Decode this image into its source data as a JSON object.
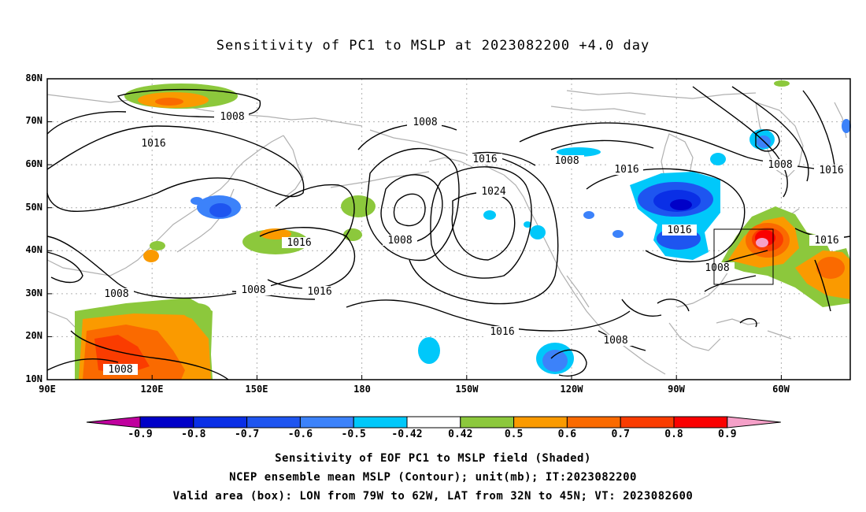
{
  "title": "Sensitivity of PC1 to MSLP at 2023082200 +4.0 day",
  "lat_labels": [
    "80N",
    "70N",
    "60N",
    "50N",
    "40N",
    "30N",
    "20N",
    "10N"
  ],
  "lon_labels": [
    "90E",
    "120E",
    "150E",
    "180",
    "150W",
    "120W",
    "90W",
    "60W"
  ],
  "contour_labels": [
    "1008",
    "1016",
    "1016",
    "1008",
    "1008",
    "1016",
    "1024",
    "1008",
    "1016",
    "1008",
    "1016",
    "1016",
    "1008",
    "1008",
    "1016",
    "1008",
    "1016",
    "1008",
    "1016",
    "1008"
  ],
  "colorbar": {
    "labels": [
      "-0.9",
      "-0.8",
      "-0.7",
      "-0.6",
      "-0.5",
      "-0.42",
      "0.42",
      "0.5",
      "0.6",
      "0.7",
      "0.8",
      "0.9"
    ],
    "colors": [
      "#c0009e",
      "#0000c8",
      "#0a2fe6",
      "#1e55f0",
      "#3c82fa",
      "#00c8fa",
      "#ffffff",
      "#8cc83c",
      "#fa9a00",
      "#fa6a00",
      "#fa3c00",
      "#fa0000",
      "#f5a0c8"
    ]
  },
  "valid_box": {
    "lon_west": "79W",
    "lon_east": "62W",
    "lat_south": "32N",
    "lat_north": "45N"
  },
  "captions": [
    "Sensitivity of EOF PC1 to MSLP field (Shaded)",
    "NCEP ensemble mean MSLP (Contour); unit(mb); IT:2023082200",
    "Valid area (box): LON from 79W to 62W, LAT from 32N to 45N; VT: 2023082600"
  ]
}
